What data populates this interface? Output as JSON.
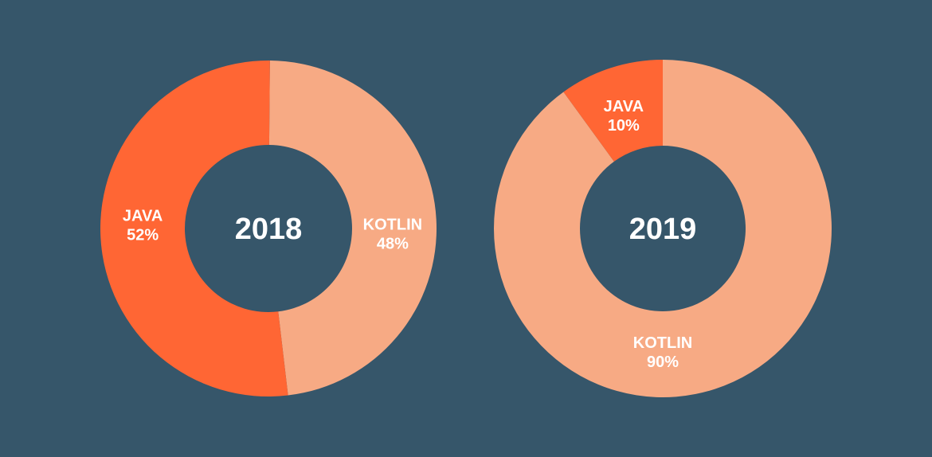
{
  "colors": {
    "background": "#36566a",
    "java": "#ff6634",
    "kotlin": "#f7aa84",
    "text": "#ffffff"
  },
  "chart_data": [
    {
      "type": "pie",
      "title": "2018",
      "slices": [
        {
          "name": "KOTLIN",
          "value": 48,
          "value_label": "48%",
          "color": "#f7aa84"
        },
        {
          "name": "JAVA",
          "value": 52,
          "value_label": "52%",
          "color": "#ff6634"
        }
      ]
    },
    {
      "type": "pie",
      "title": "2019",
      "slices": [
        {
          "name": "KOTLIN",
          "value": 90,
          "value_label": "90%",
          "color": "#f7aa84"
        },
        {
          "name": "JAVA",
          "value": 10,
          "value_label": "10%",
          "color": "#ff6634"
        }
      ]
    }
  ]
}
